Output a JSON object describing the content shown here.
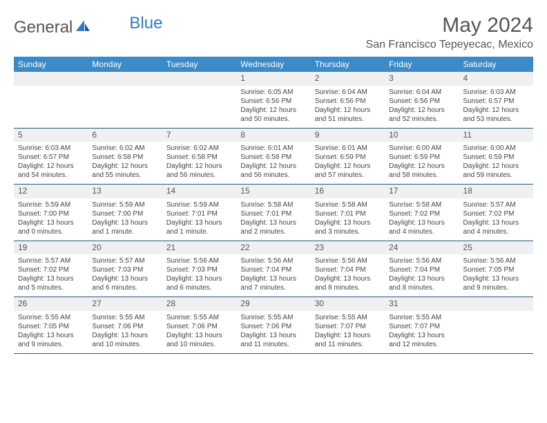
{
  "brand": {
    "name1": "General",
    "name2": "Blue"
  },
  "title": "May 2024",
  "location": "San Francisco Tepeyecac, Mexico",
  "weekdays": [
    "Sunday",
    "Monday",
    "Tuesday",
    "Wednesday",
    "Thursday",
    "Friday",
    "Saturday"
  ],
  "colors": {
    "header_bg": "#3b8bc9",
    "header_text": "#ffffff",
    "daynum_bg": "#eef0f2",
    "row_border": "#2a5a88",
    "brand_gray": "#555555",
    "brand_blue": "#2f7bbf"
  },
  "fonts": {
    "title_size": 30,
    "location_size": 16,
    "weekday_size": 12,
    "daynum_size": 12,
    "body_size": 10
  },
  "weeks": [
    [
      {
        "n": "",
        "sr": "",
        "ss": "",
        "dl1": "",
        "dl2": ""
      },
      {
        "n": "",
        "sr": "",
        "ss": "",
        "dl1": "",
        "dl2": ""
      },
      {
        "n": "",
        "sr": "",
        "ss": "",
        "dl1": "",
        "dl2": ""
      },
      {
        "n": "1",
        "sr": "Sunrise: 6:05 AM",
        "ss": "Sunset: 6:56 PM",
        "dl1": "Daylight: 12 hours",
        "dl2": "and 50 minutes."
      },
      {
        "n": "2",
        "sr": "Sunrise: 6:04 AM",
        "ss": "Sunset: 6:56 PM",
        "dl1": "Daylight: 12 hours",
        "dl2": "and 51 minutes."
      },
      {
        "n": "3",
        "sr": "Sunrise: 6:04 AM",
        "ss": "Sunset: 6:56 PM",
        "dl1": "Daylight: 12 hours",
        "dl2": "and 52 minutes."
      },
      {
        "n": "4",
        "sr": "Sunrise: 6:03 AM",
        "ss": "Sunset: 6:57 PM",
        "dl1": "Daylight: 12 hours",
        "dl2": "and 53 minutes."
      }
    ],
    [
      {
        "n": "5",
        "sr": "Sunrise: 6:03 AM",
        "ss": "Sunset: 6:57 PM",
        "dl1": "Daylight: 12 hours",
        "dl2": "and 54 minutes."
      },
      {
        "n": "6",
        "sr": "Sunrise: 6:02 AM",
        "ss": "Sunset: 6:58 PM",
        "dl1": "Daylight: 12 hours",
        "dl2": "and 55 minutes."
      },
      {
        "n": "7",
        "sr": "Sunrise: 6:02 AM",
        "ss": "Sunset: 6:58 PM",
        "dl1": "Daylight: 12 hours",
        "dl2": "and 56 minutes."
      },
      {
        "n": "8",
        "sr": "Sunrise: 6:01 AM",
        "ss": "Sunset: 6:58 PM",
        "dl1": "Daylight: 12 hours",
        "dl2": "and 56 minutes."
      },
      {
        "n": "9",
        "sr": "Sunrise: 6:01 AM",
        "ss": "Sunset: 6:59 PM",
        "dl1": "Daylight: 12 hours",
        "dl2": "and 57 minutes."
      },
      {
        "n": "10",
        "sr": "Sunrise: 6:00 AM",
        "ss": "Sunset: 6:59 PM",
        "dl1": "Daylight: 12 hours",
        "dl2": "and 58 minutes."
      },
      {
        "n": "11",
        "sr": "Sunrise: 6:00 AM",
        "ss": "Sunset: 6:59 PM",
        "dl1": "Daylight: 12 hours",
        "dl2": "and 59 minutes."
      }
    ],
    [
      {
        "n": "12",
        "sr": "Sunrise: 5:59 AM",
        "ss": "Sunset: 7:00 PM",
        "dl1": "Daylight: 13 hours",
        "dl2": "and 0 minutes."
      },
      {
        "n": "13",
        "sr": "Sunrise: 5:59 AM",
        "ss": "Sunset: 7:00 PM",
        "dl1": "Daylight: 13 hours",
        "dl2": "and 1 minute."
      },
      {
        "n": "14",
        "sr": "Sunrise: 5:59 AM",
        "ss": "Sunset: 7:01 PM",
        "dl1": "Daylight: 13 hours",
        "dl2": "and 1 minute."
      },
      {
        "n": "15",
        "sr": "Sunrise: 5:58 AM",
        "ss": "Sunset: 7:01 PM",
        "dl1": "Daylight: 13 hours",
        "dl2": "and 2 minutes."
      },
      {
        "n": "16",
        "sr": "Sunrise: 5:58 AM",
        "ss": "Sunset: 7:01 PM",
        "dl1": "Daylight: 13 hours",
        "dl2": "and 3 minutes."
      },
      {
        "n": "17",
        "sr": "Sunrise: 5:58 AM",
        "ss": "Sunset: 7:02 PM",
        "dl1": "Daylight: 13 hours",
        "dl2": "and 4 minutes."
      },
      {
        "n": "18",
        "sr": "Sunrise: 5:57 AM",
        "ss": "Sunset: 7:02 PM",
        "dl1": "Daylight: 13 hours",
        "dl2": "and 4 minutes."
      }
    ],
    [
      {
        "n": "19",
        "sr": "Sunrise: 5:57 AM",
        "ss": "Sunset: 7:02 PM",
        "dl1": "Daylight: 13 hours",
        "dl2": "and 5 minutes."
      },
      {
        "n": "20",
        "sr": "Sunrise: 5:57 AM",
        "ss": "Sunset: 7:03 PM",
        "dl1": "Daylight: 13 hours",
        "dl2": "and 6 minutes."
      },
      {
        "n": "21",
        "sr": "Sunrise: 5:56 AM",
        "ss": "Sunset: 7:03 PM",
        "dl1": "Daylight: 13 hours",
        "dl2": "and 6 minutes."
      },
      {
        "n": "22",
        "sr": "Sunrise: 5:56 AM",
        "ss": "Sunset: 7:04 PM",
        "dl1": "Daylight: 13 hours",
        "dl2": "and 7 minutes."
      },
      {
        "n": "23",
        "sr": "Sunrise: 5:56 AM",
        "ss": "Sunset: 7:04 PM",
        "dl1": "Daylight: 13 hours",
        "dl2": "and 8 minutes."
      },
      {
        "n": "24",
        "sr": "Sunrise: 5:56 AM",
        "ss": "Sunset: 7:04 PM",
        "dl1": "Daylight: 13 hours",
        "dl2": "and 8 minutes."
      },
      {
        "n": "25",
        "sr": "Sunrise: 5:56 AM",
        "ss": "Sunset: 7:05 PM",
        "dl1": "Daylight: 13 hours",
        "dl2": "and 9 minutes."
      }
    ],
    [
      {
        "n": "26",
        "sr": "Sunrise: 5:55 AM",
        "ss": "Sunset: 7:05 PM",
        "dl1": "Daylight: 13 hours",
        "dl2": "and 9 minutes."
      },
      {
        "n": "27",
        "sr": "Sunrise: 5:55 AM",
        "ss": "Sunset: 7:06 PM",
        "dl1": "Daylight: 13 hours",
        "dl2": "and 10 minutes."
      },
      {
        "n": "28",
        "sr": "Sunrise: 5:55 AM",
        "ss": "Sunset: 7:06 PM",
        "dl1": "Daylight: 13 hours",
        "dl2": "and 10 minutes."
      },
      {
        "n": "29",
        "sr": "Sunrise: 5:55 AM",
        "ss": "Sunset: 7:06 PM",
        "dl1": "Daylight: 13 hours",
        "dl2": "and 11 minutes."
      },
      {
        "n": "30",
        "sr": "Sunrise: 5:55 AM",
        "ss": "Sunset: 7:07 PM",
        "dl1": "Daylight: 13 hours",
        "dl2": "and 11 minutes."
      },
      {
        "n": "31",
        "sr": "Sunrise: 5:55 AM",
        "ss": "Sunset: 7:07 PM",
        "dl1": "Daylight: 13 hours",
        "dl2": "and 12 minutes."
      },
      {
        "n": "",
        "sr": "",
        "ss": "",
        "dl1": "",
        "dl2": ""
      }
    ]
  ]
}
